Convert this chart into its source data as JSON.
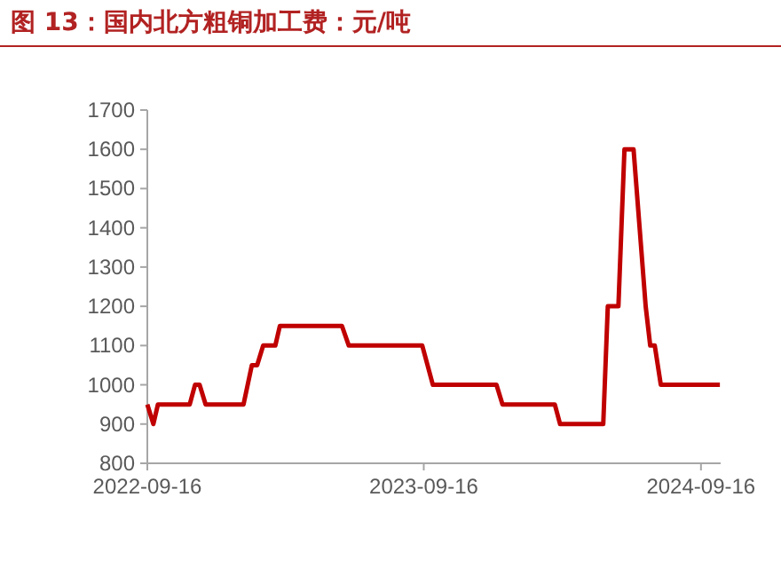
{
  "chart_data": {
    "type": "line",
    "title": "图 13：国内北方粗铜加工费：元/吨",
    "x": [
      "2022-09-16",
      "2022-09-24",
      "2022-09-30",
      "2022-11-11",
      "2022-11-18",
      "2022-11-24",
      "2022-12-02",
      "2023-01-21",
      "2023-02-01",
      "2023-02-08",
      "2023-02-16",
      "2023-03-04",
      "2023-03-10",
      "2023-05-31",
      "2023-06-09",
      "2023-09-14",
      "2023-09-28",
      "2023-12-21",
      "2023-12-29",
      "2024-03-07",
      "2024-03-14",
      "2024-05-10",
      "2024-05-16",
      "2024-05-30",
      "2024-06-07",
      "2024-06-19",
      "2024-07-05",
      "2024-07-11",
      "2024-07-17",
      "2024-07-25",
      "2024-10-11"
    ],
    "series": [
      {
        "color": "#c00000",
        "values": [
          950,
          900,
          950,
          950,
          1000,
          1000,
          950,
          950,
          1050,
          1050,
          1100,
          1100,
          1150,
          1150,
          1100,
          1100,
          1000,
          1000,
          950,
          950,
          900,
          900,
          1200,
          1200,
          1600,
          1600,
          1200,
          1100,
          1100,
          1000,
          1000
        ]
      }
    ],
    "xlim": [
      "2022-09-16",
      "2024-10-12"
    ],
    "xticks": [
      "2022-09-16",
      "2023-09-16",
      "2024-09-16"
    ],
    "ylim": [
      800,
      1700
    ],
    "yticks": [
      800,
      900,
      1000,
      1100,
      1200,
      1300,
      1400,
      1500,
      1600,
      1700
    ],
    "marker": "none",
    "line_style": "solid"
  }
}
